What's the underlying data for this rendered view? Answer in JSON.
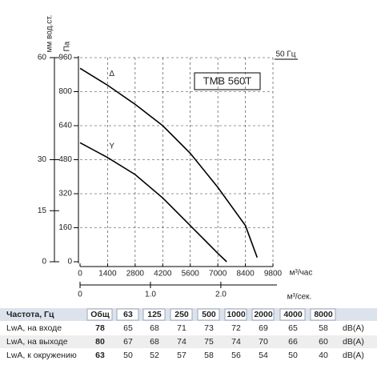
{
  "chart_data": {
    "type": "line",
    "title": "TMB 560T",
    "subtitle": "50 Гц",
    "y_label": "Па",
    "y2_label": "мм вод.ст.",
    "x_label": "м³/час",
    "x2_label": "м³/сек.",
    "xlim": [
      0,
      9800
    ],
    "xticks": [
      0,
      1400,
      2800,
      4200,
      5600,
      7000,
      8400,
      9800
    ],
    "x2lim": [
      0,
      2.74
    ],
    "x2ticks": [
      0,
      {
        "value": 1,
        "label": "1.0"
      },
      {
        "value": 2,
        "label": "2.0"
      }
    ],
    "ylim": [
      0,
      960
    ],
    "yticks": [
      0,
      160,
      320,
      480,
      640,
      800,
      960
    ],
    "y2lim": [
      0,
      60
    ],
    "y2ticks": [
      0,
      15,
      30,
      60
    ],
    "grid": true,
    "series": [
      {
        "name": "Δ",
        "color": "#000000",
        "x": [
          0,
          1400,
          2800,
          4200,
          5600,
          7000,
          8400,
          9000
        ],
        "values": [
          910,
          830,
          740,
          640,
          510,
          350,
          170,
          20
        ]
      },
      {
        "name": "Y",
        "color": "#000000",
        "x": [
          0,
          1400,
          2800,
          4200,
          5600,
          7000,
          7450
        ],
        "values": [
          560,
          490,
          410,
          300,
          170,
          40,
          0
        ]
      }
    ]
  },
  "table": {
    "header": [
      "Частота, Гц",
      "Общ",
      "63",
      "125",
      "250",
      "500",
      "1000",
      "2000",
      "4000",
      "8000"
    ],
    "rows": [
      [
        "LwA, на входе",
        78,
        65,
        68,
        71,
        73,
        72,
        69,
        65,
        58,
        "dB(A)"
      ],
      [
        "LwA, на выходе",
        80,
        67,
        68,
        74,
        75,
        74,
        70,
        66,
        60,
        "dB(A)"
      ],
      [
        "LwA, к окружению",
        63,
        50,
        52,
        57,
        58,
        56,
        54,
        50,
        40,
        "dB(A)"
      ]
    ]
  }
}
